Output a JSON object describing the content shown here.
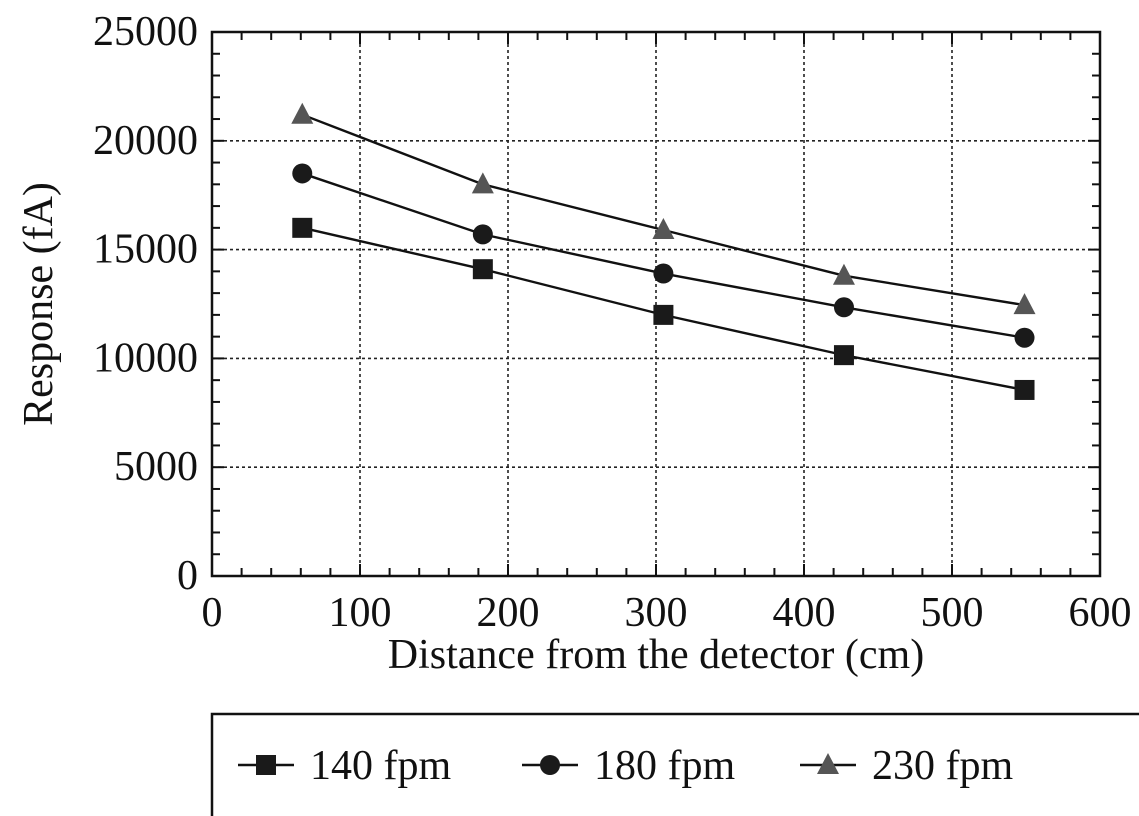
{
  "chart_data": {
    "type": "line",
    "title": "",
    "xlabel": "Distance from the detector (cm)",
    "ylabel": "Response (fA)",
    "xlim": [
      0,
      600
    ],
    "ylim": [
      0,
      25000
    ],
    "x_ticks": [
      "0",
      "100",
      "200",
      "300",
      "400",
      "500",
      "600"
    ],
    "y_ticks": [
      "0",
      "5000",
      "10000",
      "15000",
      "20000",
      "25000"
    ],
    "grid": true,
    "legend_position": "bottom",
    "x": [
      61,
      183,
      305,
      427,
      549
    ],
    "series": [
      {
        "name": "140 fpm",
        "marker": "square",
        "color": "#1a1a1a",
        "values": [
          16000,
          14100,
          12000,
          10150,
          8550
        ]
      },
      {
        "name": "180 fpm",
        "marker": "circle",
        "color": "#1a1a1a",
        "values": [
          18500,
          15700,
          13900,
          12350,
          10950
        ]
      },
      {
        "name": "230 fpm",
        "marker": "triangle",
        "color": "#555555",
        "values": [
          21200,
          18000,
          15900,
          13800,
          12450
        ]
      }
    ]
  }
}
